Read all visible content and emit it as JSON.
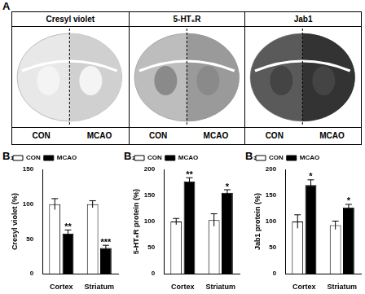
{
  "panel_a": {
    "label": "A",
    "columns": [
      {
        "title": "Cresyl violet",
        "left": "CON",
        "right": "MCAO"
      },
      {
        "title": "5-HT₆R",
        "left": "CON",
        "right": "MCAO"
      },
      {
        "title": "Jab1",
        "left": "CON",
        "right": "MCAO"
      }
    ]
  },
  "chart_data": [
    {
      "type": "bar",
      "title": "B₁",
      "y_label": "Cresyl violet (%)",
      "categories": [
        "Cortex",
        "Striatum"
      ],
      "series": [
        {
          "name": "CON",
          "color": "#ffffff",
          "values": [
            100,
            100
          ],
          "errors": [
            8,
            5
          ]
        },
        {
          "name": "MCAO",
          "color": "#000000",
          "values": [
            58,
            37
          ],
          "errors": [
            5,
            4
          ],
          "annotations": [
            "**",
            "***"
          ]
        }
      ],
      "ylim": [
        0,
        150
      ],
      "yticks": [
        0,
        50,
        100,
        150
      ],
      "grid": false,
      "legend": "top-left"
    },
    {
      "type": "bar",
      "title": "B₂",
      "y_label": "5-HT₆R protein (%)",
      "categories": [
        "Cortex",
        "Striatum"
      ],
      "series": [
        {
          "name": "CON",
          "color": "#ffffff",
          "values": [
            100,
            103
          ],
          "errors": [
            6,
            12
          ]
        },
        {
          "name": "MCAO",
          "color": "#000000",
          "values": [
            177,
            155
          ],
          "errors": [
            7,
            6
          ],
          "annotations": [
            "**",
            "*"
          ]
        }
      ],
      "ylim": [
        0,
        200
      ],
      "yticks": [
        0,
        50,
        100,
        150,
        200
      ],
      "grid": false,
      "legend": "top-left"
    },
    {
      "type": "bar",
      "title": "B₃",
      "y_label": "Jab1 protein (%)",
      "categories": [
        "Cortex",
        "Striatum"
      ],
      "series": [
        {
          "name": "CON",
          "color": "#ffffff",
          "values": [
            100,
            93
          ],
          "errors": [
            13,
            8
          ]
        },
        {
          "name": "MCAO",
          "color": "#000000",
          "values": [
            170,
            127
          ],
          "errors": [
            10,
            6
          ],
          "annotations": [
            "*",
            "*"
          ]
        }
      ],
      "ylim": [
        0,
        200
      ],
      "yticks": [
        0,
        50,
        100,
        150,
        200
      ],
      "grid": false,
      "legend": "top-left"
    }
  ]
}
